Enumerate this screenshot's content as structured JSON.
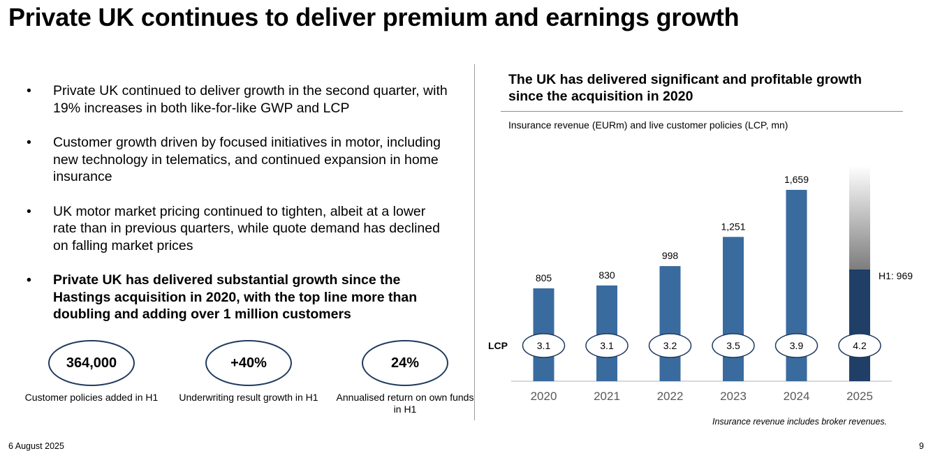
{
  "title": "Private UK continues to deliver premium and earnings growth",
  "bullet_symbol": "•",
  "bullets": [
    {
      "text": "Private UK continued to deliver growth in the second quarter, with 19% increases in both like-for-like GWP and LCP",
      "bold": false
    },
    {
      "text": "Customer growth driven by focused initiatives in motor, including new technology in telematics, and continued expansion in home insurance",
      "bold": false
    },
    {
      "text": "UK motor market pricing continued to tighten, albeit at a lower rate than in previous quarters, while quote demand has declined on falling market prices",
      "bold": false
    },
    {
      "text": "Private UK has delivered substantial growth since the Hastings acquisition in 2020, with the top line more than doubling and adding over 1 million customers",
      "bold": true
    }
  ],
  "kpis": [
    {
      "value": "364,000",
      "caption": "Customer policies added in H1"
    },
    {
      "value": "+40%",
      "caption": "Underwriting result growth in H1"
    },
    {
      "value": "24%",
      "caption": "Annualised return on own funds in H1"
    }
  ],
  "right_title": "The UK has delivered significant and profitable growth since the acquisition in 2020",
  "chart_subtitle": "Insurance revenue (EURm) and live customer policies (LCP, mn)",
  "footnote": "Insurance revenue includes broker revenues.",
  "date": "6 August 2025",
  "page_number": "9",
  "chart_data": {
    "type": "bar",
    "categories": [
      "2020",
      "2021",
      "2022",
      "2023",
      "2024",
      "2025"
    ],
    "revenue_values": [
      805,
      830,
      998,
      1251,
      1659,
      969
    ],
    "revenue_labels": [
      "805",
      "830",
      "998",
      "1,251",
      "1,659",
      "H1: 969"
    ],
    "lcp_label": "LCP",
    "lcp_values": [
      "3.1",
      "3.1",
      "3.2",
      "3.5",
      "3.9",
      "4.2"
    ],
    "ylim": [
      0,
      1800
    ],
    "colors": {
      "bar": "#3a6b9e",
      "h1_bar": "#1f3f66",
      "oval_border": "#1f3a5f"
    }
  }
}
